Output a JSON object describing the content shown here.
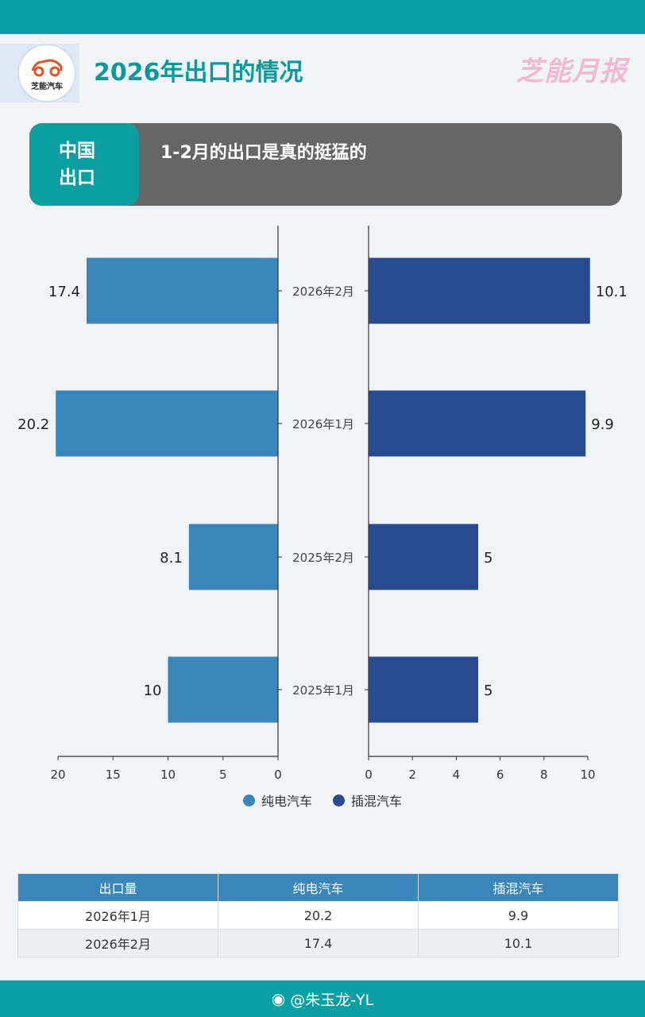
{
  "header": {
    "title": "2026年出口的情况",
    "brand": "芝能月报",
    "logo_text": "芝能汽车"
  },
  "banner": {
    "tag_line1": "中国",
    "tag_line2": "出口",
    "headline": "1-2月的出口是真的挺猛的"
  },
  "colors": {
    "teal": "#099ea1",
    "bev": "#3a86bb",
    "phev": "#284a91",
    "banner_gray": "#666666"
  },
  "chart_data": {
    "type": "bar",
    "orientation": "horizontal-butterfly",
    "categories": [
      "2026年2月",
      "2026年1月",
      "2025年2月",
      "2025年1月"
    ],
    "series": [
      {
        "name": "纯电汽车",
        "values": [
          17.4,
          20.2,
          8.1,
          10
        ],
        "side": "left",
        "xlim": [
          0,
          20
        ],
        "ticks": [
          20,
          15,
          10,
          5,
          0
        ]
      },
      {
        "name": "插混汽车",
        "values": [
          10.1,
          9.9,
          5,
          5
        ],
        "side": "right",
        "xlim": [
          0,
          10
        ],
        "ticks": [
          0,
          2,
          4,
          6,
          8,
          10
        ]
      }
    ],
    "legend": "bottom-center",
    "grid": false
  },
  "table": {
    "headers": [
      "出口量",
      "纯电汽车",
      "插混汽车"
    ],
    "rows": [
      [
        "2026年1月",
        "20.2",
        "9.9"
      ],
      [
        "2026年2月",
        "17.4",
        "10.1"
      ]
    ]
  },
  "footer": {
    "weibo_icon": "weibo-icon",
    "handle": "@朱玉龙-YL"
  }
}
